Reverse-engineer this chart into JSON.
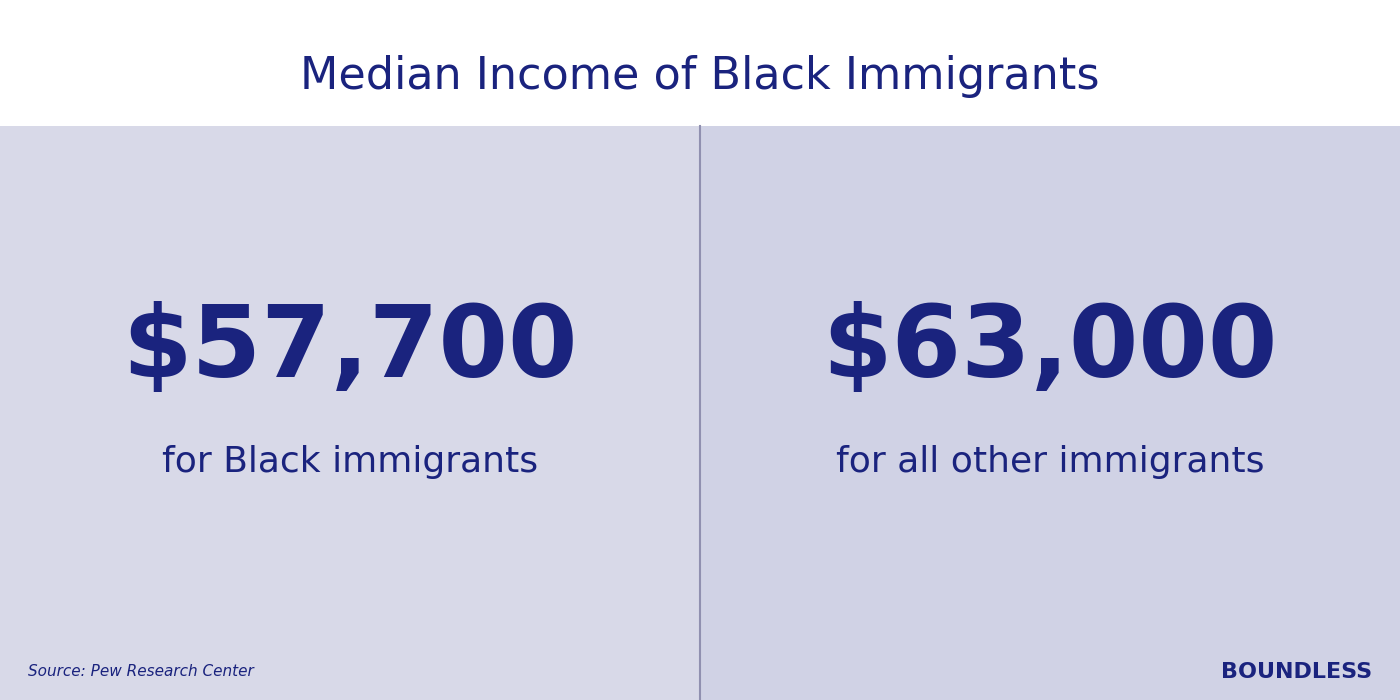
{
  "title": "Median Income of Black Immigrants",
  "title_color": "#1a237e",
  "title_fontsize": 32,
  "background_color": "#ffffff",
  "left_panel_color": "#d8d9e8",
  "right_panel_color": "#d0d2e5",
  "panel_text_color": "#1a237e",
  "left_value": "$57,700",
  "left_label": "for Black immigrants",
  "right_value": "$63,000",
  "right_label": "for all other immigrants",
  "value_fontsize": 72,
  "label_fontsize": 26,
  "source_text": "Source: Pew Research Center",
  "source_fontsize": 11,
  "brand_text": "BOUNDLESS",
  "brand_fontsize": 16,
  "divider_color": "#9090b0"
}
